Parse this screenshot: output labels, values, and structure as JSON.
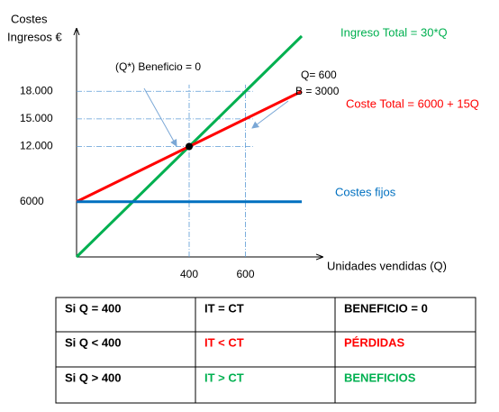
{
  "chart_data": {
    "type": "line",
    "y_label": [
      "Costes",
      "Ingresos €"
    ],
    "x_label": "Unidades vendidas (Q)",
    "x": [
      0,
      400,
      600,
      800
    ],
    "series": [
      {
        "name": "Ingreso Total = 30*Q",
        "color": "#00b050",
        "values": [
          0,
          12000,
          18000,
          24000
        ]
      },
      {
        "name": "Coste Total = 6000 + 15Q",
        "color": "#ff0000",
        "values": [
          6000,
          12000,
          15000,
          18000
        ]
      },
      {
        "name": "Costes fijos",
        "color": "#0070c0",
        "values": [
          6000,
          6000,
          6000,
          6000
        ]
      }
    ],
    "xlim": [
      0,
      880
    ],
    "ylim": [
      0,
      24000
    ],
    "xticks": [
      400,
      600
    ],
    "yticks": [
      6000,
      {
        "value": 12000,
        "label": "12.000"
      },
      {
        "value": 15000,
        "label": "15.000"
      },
      {
        "value": 18000,
        "label": "18.000"
      }
    ],
    "break_even": {
      "x": 400,
      "y": 12000
    },
    "annotations": [
      "(Q*) Beneficio = 0",
      "Q= 600",
      "B = 3000"
    ]
  },
  "table": {
    "rows": [
      [
        "Si Q = 400",
        "IT = CT",
        "BENEFICIO = 0"
      ],
      [
        "Si Q < 400",
        "IT < CT",
        "PÉRDIDAS"
      ],
      [
        "Si Q > 400",
        "IT > CT",
        "BENEFICIOS"
      ]
    ],
    "row_colors": [
      "#000000",
      "#ff0000",
      "#00b050"
    ]
  }
}
